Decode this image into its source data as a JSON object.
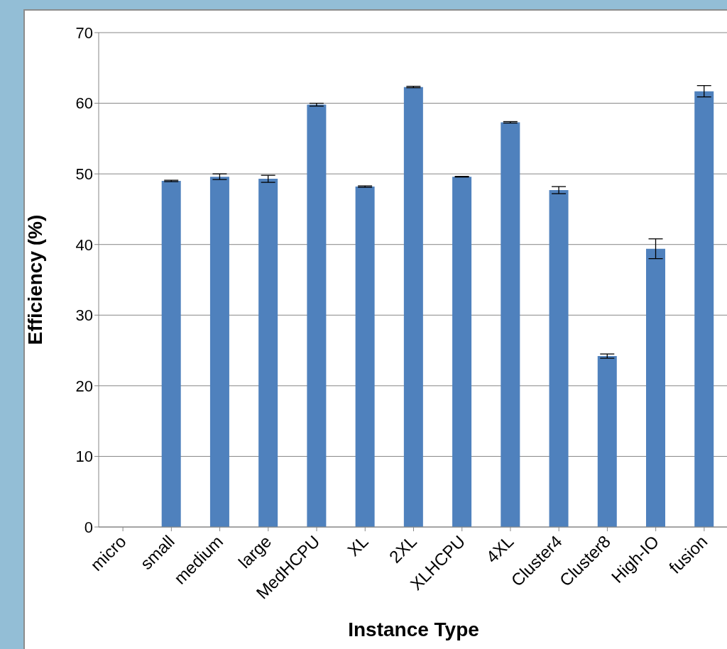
{
  "chart_data": {
    "type": "bar",
    "xlabel": "Instance Type",
    "ylabel": "Efficiency (%)",
    "categories": [
      "micro",
      "small",
      "medium",
      "large",
      "MedHCPU",
      "XL",
      "2XL",
      "XLHCPU",
      "4XL",
      "Cluster4",
      "Cluster8",
      "High-IO",
      "fusion"
    ],
    "values": [
      null,
      49.0,
      49.6,
      49.3,
      59.8,
      48.2,
      62.3,
      49.6,
      57.3,
      47.7,
      24.2,
      39.4,
      61.7
    ],
    "errors": [
      null,
      0.1,
      0.4,
      0.5,
      0.2,
      0.1,
      0.1,
      0.05,
      0.1,
      0.5,
      0.3,
      1.4,
      0.8
    ],
    "color": "#4f81bd",
    "ylim": [
      0,
      70
    ],
    "yticks": [
      0,
      10,
      20,
      30,
      40,
      50,
      60,
      70
    ],
    "grid": "y"
  }
}
